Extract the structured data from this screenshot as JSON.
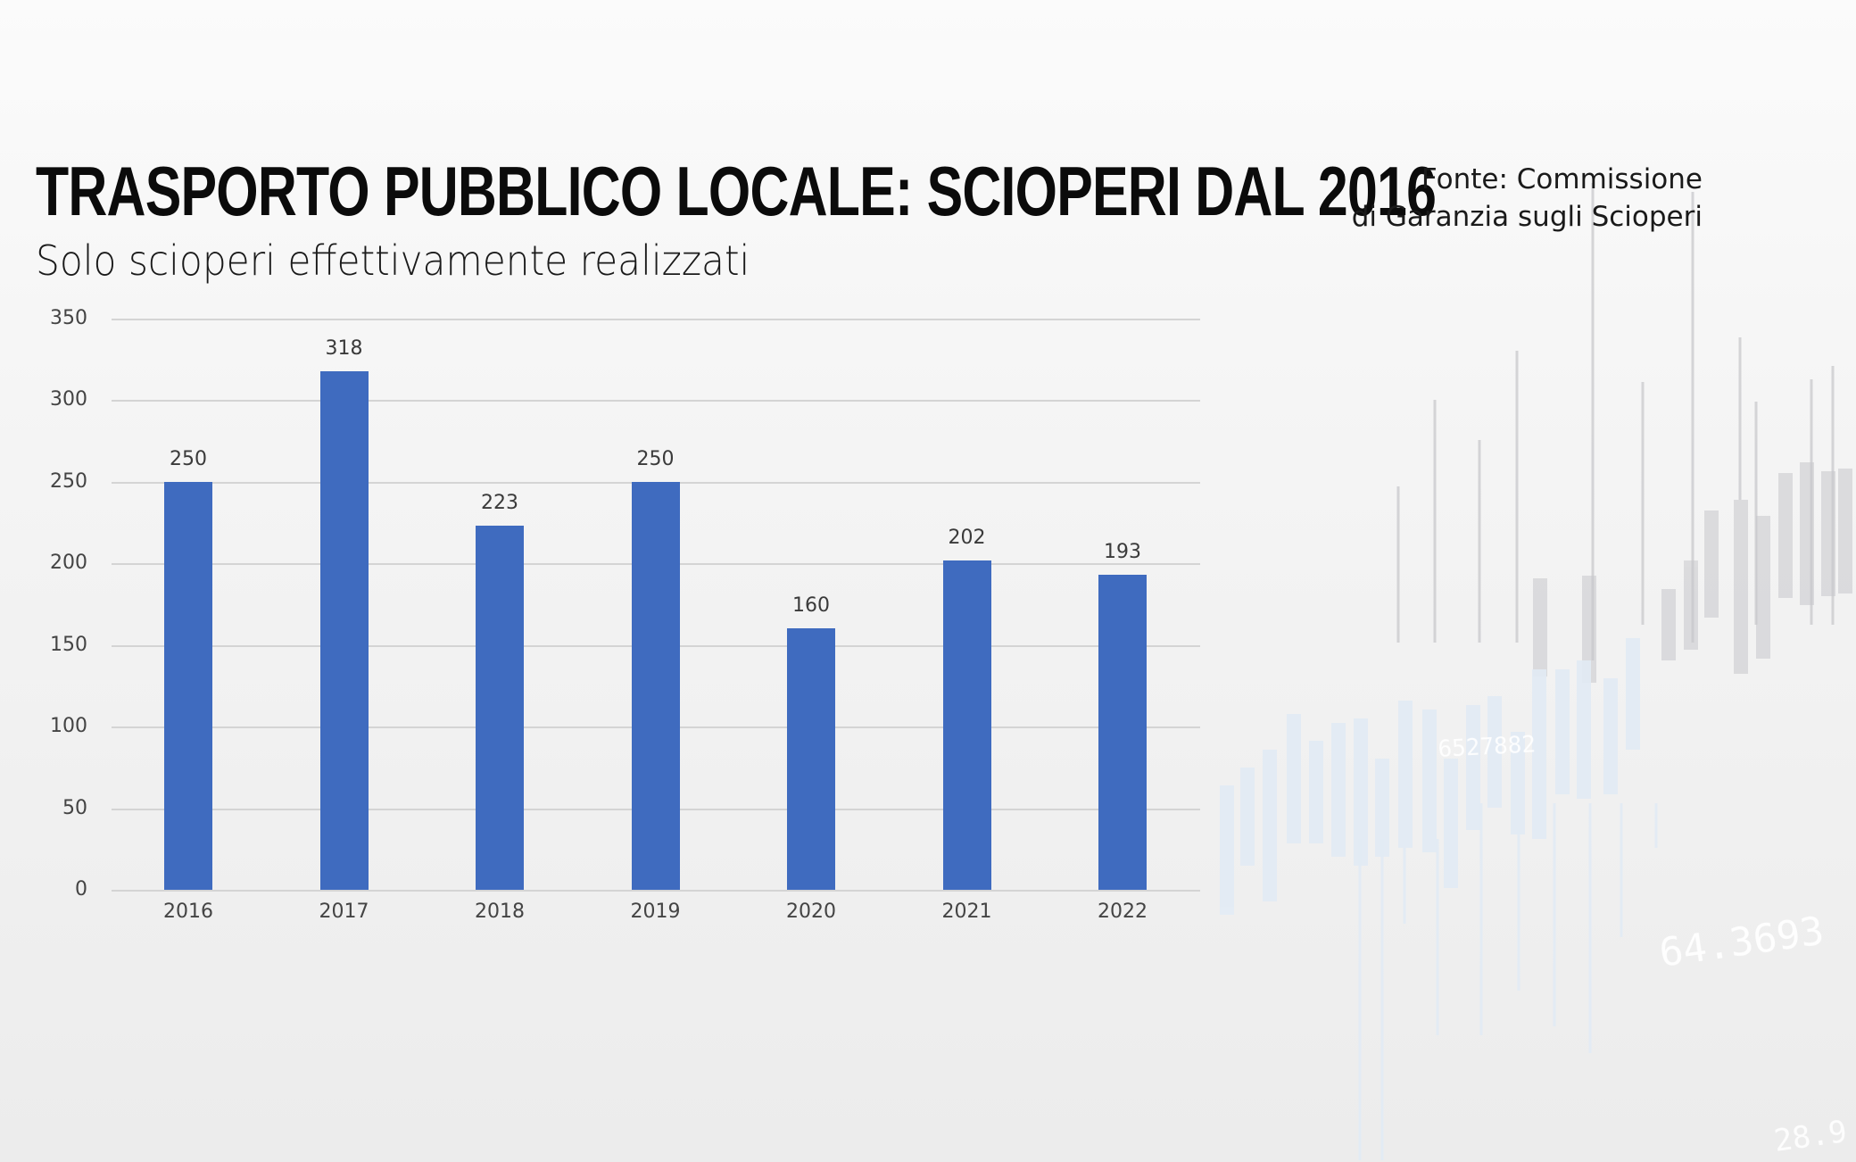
{
  "header": {
    "title": "TRASPORTO PUBBLICO LOCALE: SCIOPERI DAL 2016",
    "subtitle": "Solo scioperi effettivamente realizzati",
    "source_line1": "Fonte: Commissione",
    "source_line2": "di Garanzia sugli Scioperi"
  },
  "colors": {
    "bar": "#3f6bbf",
    "gridline": "#d4d4d4",
    "title": "#0b0b0b",
    "background": "#f2f2f2"
  },
  "chart_data": {
    "type": "bar",
    "title": "TRASPORTO PUBBLICO LOCALE: SCIOPERI DAL 2016",
    "subtitle": "Solo scioperi effettivamente realizzati",
    "source": "Fonte: Commissione di Garanzia sugli Scioperi",
    "categories": [
      "2016",
      "2017",
      "2018",
      "2019",
      "2020",
      "2021",
      "2022"
    ],
    "values": [
      250,
      318,
      223,
      250,
      160,
      202,
      193
    ],
    "data_labels": [
      "250",
      "318",
      "223",
      "250",
      "160",
      "202",
      "193"
    ],
    "xlabel": "",
    "ylabel": "",
    "ylim": [
      0,
      350
    ],
    "yticks": [
      "0",
      "50",
      "100",
      "150",
      "200",
      "250",
      "300",
      "350"
    ],
    "grid": true,
    "legend": null
  },
  "background_decoration": {
    "type": "faded candlestick chart",
    "numbers": [
      "6527882",
      "64.3693",
      "28.9"
    ]
  }
}
